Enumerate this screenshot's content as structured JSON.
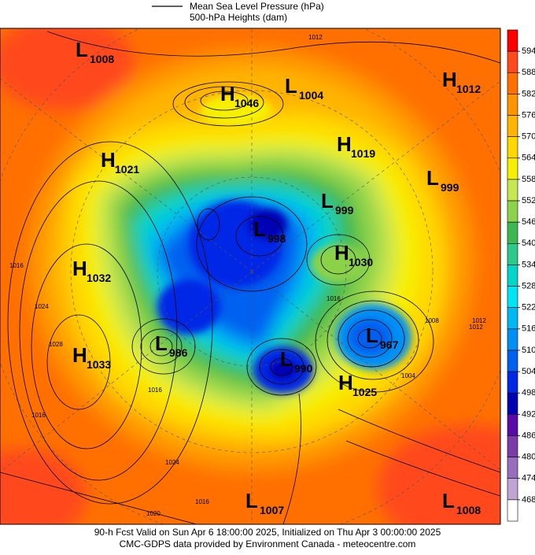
{
  "header": {
    "legend_line": "Mean Sea Level Pressure (hPa)",
    "legend_sub": "500-hPa Heights (dam)"
  },
  "colorbar": {
    "ticks": [
      594,
      588,
      582,
      576,
      570,
      564,
      558,
      552,
      546,
      540,
      534,
      528,
      522,
      516,
      510,
      504,
      498,
      492,
      486,
      480,
      474,
      468
    ],
    "colors": [
      "#ff0000",
      "#ff4a1e",
      "#ff7000",
      "#ff9400",
      "#ffb400",
      "#ffd800",
      "#f6f000",
      "#c8e650",
      "#8cd24a",
      "#3cb850",
      "#2cc88c",
      "#00d6c8",
      "#00e4f4",
      "#00b8f4",
      "#0090f4",
      "#0060f0",
      "#0028e6",
      "#0000b4",
      "#5a0aa8",
      "#7c3ca8",
      "#9a6cbc",
      "#c0a4d4",
      "#ffffff"
    ]
  },
  "centers": [
    {
      "letter": "L",
      "value": "1008"
    },
    {
      "letter": "H",
      "value": "1046"
    },
    {
      "letter": "L",
      "value": "1004"
    },
    {
      "letter": "H",
      "value": "1012"
    },
    {
      "letter": "H",
      "value": "1019"
    },
    {
      "letter": "H",
      "value": "1021"
    },
    {
      "letter": "L",
      "value": "999"
    },
    {
      "letter": "L",
      "value": "999"
    },
    {
      "letter": "L",
      "value": "998"
    },
    {
      "letter": "H",
      "value": "1030"
    },
    {
      "letter": "H",
      "value": "1032"
    },
    {
      "letter": "L",
      "value": "967"
    },
    {
      "letter": "L",
      "value": "986"
    },
    {
      "letter": "L",
      "value": "990"
    },
    {
      "letter": "H",
      "value": "1033"
    },
    {
      "letter": "H",
      "value": "1025"
    },
    {
      "letter": "L",
      "value": "1007"
    },
    {
      "letter": "L",
      "value": "1008"
    }
  ],
  "contour_labels": [
    "1012",
    "1016",
    "1024",
    "1028",
    "1016",
    "1024",
    "1020",
    "1016",
    "1008",
    "1012",
    "1004",
    "1016",
    "1012",
    "1016"
  ],
  "footer": {
    "line1": "90-h Fcst Valid on Sun Apr  6 18:00:00 2025, Initialized on Thu Apr  3 00:00:00 2025",
    "line2": "CMC-GDPS data provided by Environment Canada - meteocentre.com"
  }
}
